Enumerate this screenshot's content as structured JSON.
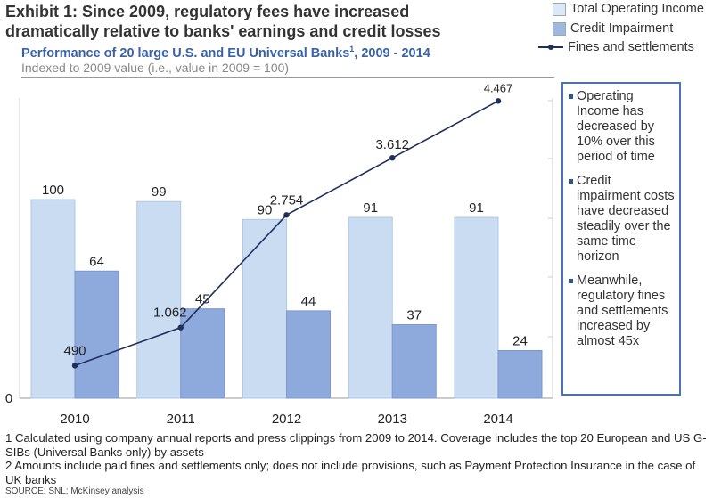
{
  "title": "Exhibit 1: Since 2009, regulatory fees have increased dramatically relative to banks' earnings and credit losses",
  "subtitle": "Performance of 20 large U.S. and EU Universal Banks",
  "subtitle_sup": "1",
  "subtitle_tail": ", 2009 - 2014",
  "index_note": "Indexed to 2009 value (i.e., value in 2009 = 100)",
  "legend": {
    "income": "Total Operating Income",
    "impairment": "Credit Impairment",
    "fines": "Fines and settlements"
  },
  "callout": [
    "Operating Income has decreased by 10% over this period of time",
    "Credit impairment costs have decreased steadily over the same time horizon",
    "Meanwhile, regulatory fines and settlements increased by almost 45x"
  ],
  "notes": [
    "1 Calculated using company annual reports and press clippings from 2009 to 2014. Coverage includes the top 20 European and US G-SIBs (Universal Banks only) by assets",
    "2 Amounts include paid fines and settlements only; does not include provisions, such as Payment Protection Insurance in the case of UK banks"
  ],
  "source": "SOURCE: SNL; McKinsey analysis",
  "chart_data": {
    "type": "bar+line",
    "categories": [
      "2010",
      "2011",
      "2012",
      "2013",
      "2014"
    ],
    "y_tick_label": "0",
    "series": [
      {
        "name": "Total Operating Income",
        "type": "bar",
        "values": [
          100,
          99,
          90,
          91,
          91
        ],
        "labels": [
          "100",
          "99",
          "90",
          "91",
          "91"
        ],
        "color": "#c9dcf2"
      },
      {
        "name": "Credit Impairment",
        "type": "bar",
        "values": [
          64,
          45,
          44,
          37,
          24
        ],
        "labels": [
          "64",
          "45",
          "44",
          "37",
          "24"
        ],
        "color": "#8ea9db"
      },
      {
        "name": "Fines and settlements",
        "type": "line",
        "axis": "secondary",
        "values": [
          490,
          1062,
          2754,
          3612,
          4467
        ],
        "labels": [
          "490",
          "1.062",
          "2.754",
          "3.612",
          "4.467"
        ],
        "color": "#1f2f5c"
      }
    ],
    "ylim": [
      0,
      100
    ],
    "y2lim": [
      0,
      5000
    ],
    "grid": false,
    "legend": "top-right"
  }
}
